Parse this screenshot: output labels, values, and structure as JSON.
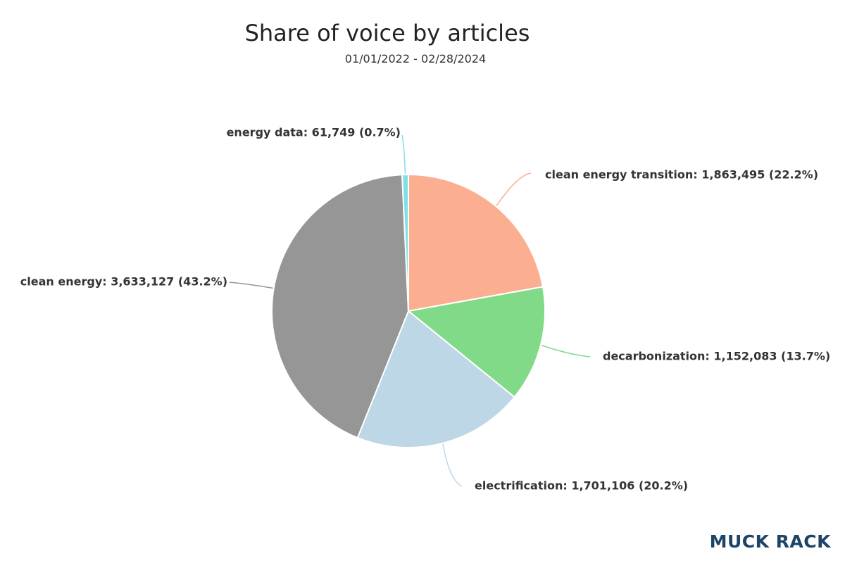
{
  "title": "Share of voice by articles",
  "subtitle": "01/01/2022 - 02/28/2024",
  "brand": {
    "logo_text": "MUCK RACK",
    "color": "#1b4468"
  },
  "chart_data": {
    "type": "pie",
    "title": "Share of voice by articles",
    "subtitle": "01/01/2022 - 02/28/2024",
    "start_angle_deg": 0,
    "direction": "clockwise",
    "slices": [
      {
        "label": "clean energy transition",
        "value": 1863495,
        "percent": 22.2,
        "display": "clean energy transition: 1,863,495 (22.2%)",
        "color": "#fcae91"
      },
      {
        "label": "decarbonization",
        "value": 1152083,
        "percent": 13.7,
        "display": "decarbonization: 1,152,083 (13.7%)",
        "color": "#80da87"
      },
      {
        "label": "electrification",
        "value": 1701106,
        "percent": 20.2,
        "display": "electrification: 1,701,106 (20.2%)",
        "color": "#bdd7e7"
      },
      {
        "label": "clean energy",
        "value": 3633127,
        "percent": 43.2,
        "display": "clean energy: 3,633,127 (43.2%)",
        "color": "#969696"
      },
      {
        "label": "energy data",
        "value": 61749,
        "percent": 0.7,
        "display": "energy data: 61,749 (0.7%)",
        "color": "#7fdfe8"
      }
    ]
  }
}
